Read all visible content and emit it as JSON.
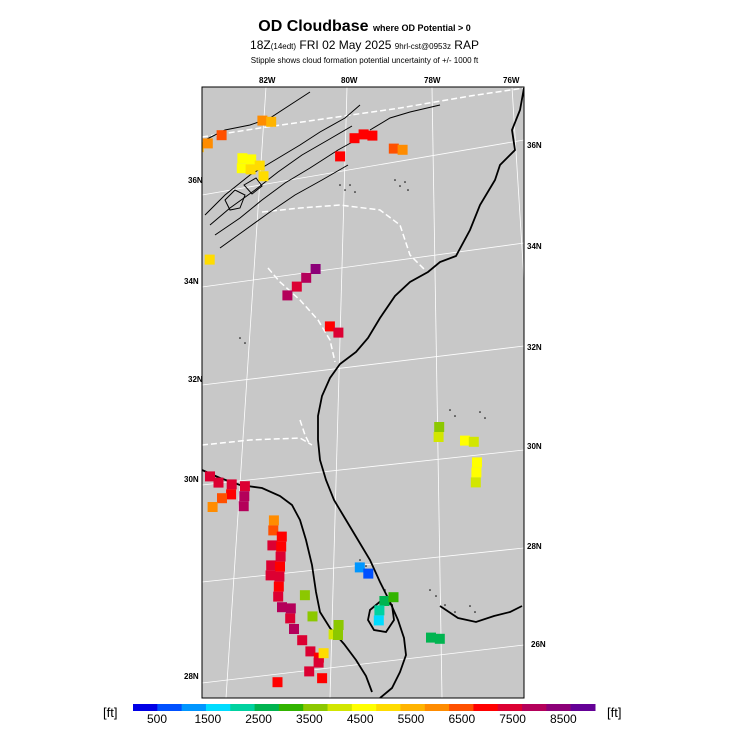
{
  "header": {
    "title_main": "OD Cloudbase",
    "title_sub": "where OD Potential > 0",
    "line2_main": "18Z",
    "line2_edt": "(14edt)",
    "line2_date": "FRI 02 May 2025",
    "line2_fcst": "9hrl-cst@0953z",
    "line2_model": "RAP",
    "line3": "Stipple shows cloud formation potential uncertainty of +/- 1000 ft"
  },
  "axes": {
    "top_lon": [
      "82W",
      "80W",
      "78W",
      "76W"
    ],
    "left_lat": [
      "36N",
      "34N",
      "32N",
      "30N",
      "28N"
    ],
    "right_lat": [
      "36N",
      "34N",
      "32N",
      "30N",
      "28N",
      "26N"
    ]
  },
  "colorbar": {
    "unit_left": "[ft]",
    "unit_right": "[ft]",
    "tick_labels": [
      "500",
      "1500",
      "2500",
      "3500",
      "4500",
      "5500",
      "6500",
      "7500",
      "8500"
    ],
    "colors": [
      "#0000e6",
      "#0050ff",
      "#0096ff",
      "#00dcff",
      "#00d2a0",
      "#00b450",
      "#32b400",
      "#8cc800",
      "#d2e600",
      "#ffff00",
      "#ffdc00",
      "#ffb400",
      "#ff8c00",
      "#ff5000",
      "#ff0000",
      "#dc0032",
      "#b4005a",
      "#8c0078",
      "#640096"
    ]
  },
  "cells": [
    {
      "lon": -82.4,
      "lat": 37.0,
      "c": 12
    },
    {
      "lon": -82.2,
      "lat": 37.0,
      "c": 11
    },
    {
      "lon": -80.3,
      "lat": 36.9,
      "c": 14
    },
    {
      "lon": -80.1,
      "lat": 37.0,
      "c": 14
    },
    {
      "lon": -79.9,
      "lat": 37.0,
      "c": 14
    },
    {
      "lon": -79.4,
      "lat": 36.8,
      "c": 13
    },
    {
      "lon": -79.2,
      "lat": 36.8,
      "c": 12
    },
    {
      "lon": -83.3,
      "lat": 36.6,
      "c": 13
    },
    {
      "lon": -80.6,
      "lat": 36.5,
      "c": 14
    },
    {
      "lon": -84.0,
      "lat": 36.3,
      "c": 11
    },
    {
      "lon": -83.8,
      "lat": 36.3,
      "c": 11
    },
    {
      "lon": -83.6,
      "lat": 36.4,
      "c": 12
    },
    {
      "lon": -82.8,
      "lat": 36.2,
      "c": 9
    },
    {
      "lon": -82.6,
      "lat": 36.2,
      "c": 9
    },
    {
      "lon": -82.4,
      "lat": 36.1,
      "c": 10
    },
    {
      "lon": -82.8,
      "lat": 36.0,
      "c": 9
    },
    {
      "lon": -82.6,
      "lat": 36.0,
      "c": 10
    },
    {
      "lon": -82.3,
      "lat": 35.9,
      "c": 10
    },
    {
      "lon": -84.2,
      "lat": 35.1,
      "c": 10
    },
    {
      "lon": -84.0,
      "lat": 35.0,
      "c": 9
    },
    {
      "lon": -84.2,
      "lat": 34.9,
      "c": 9
    },
    {
      "lon": -84.4,
      "lat": 34.8,
      "c": 9
    },
    {
      "lon": -84.0,
      "lat": 34.8,
      "c": 10
    },
    {
      "lon": -83.8,
      "lat": 34.8,
      "c": 11
    },
    {
      "lon": -83.4,
      "lat": 34.1,
      "c": 10
    },
    {
      "lon": -81.0,
      "lat": 34.2,
      "c": 17
    },
    {
      "lon": -81.2,
      "lat": 34.0,
      "c": 16
    },
    {
      "lon": -81.4,
      "lat": 33.8,
      "c": 15
    },
    {
      "lon": -81.6,
      "lat": 33.6,
      "c": 16
    },
    {
      "lon": -80.6,
      "lat": 33.1,
      "c": 14
    },
    {
      "lon": -80.4,
      "lat": 33.0,
      "c": 15
    },
    {
      "lon": -78.0,
      "lat": 31.4,
      "c": 7
    },
    {
      "lon": -78.0,
      "lat": 31.2,
      "c": 8
    },
    {
      "lon": -77.4,
      "lat": 31.2,
      "c": 9
    },
    {
      "lon": -77.2,
      "lat": 31.2,
      "c": 8
    },
    {
      "lon": -77.1,
      "lat": 30.8,
      "c": 9
    },
    {
      "lon": -77.1,
      "lat": 30.6,
      "c": 9
    },
    {
      "lon": -77.1,
      "lat": 30.4,
      "c": 8
    },
    {
      "lon": -83.1,
      "lat": 29.8,
      "c": 15
    },
    {
      "lon": -82.9,
      "lat": 29.7,
      "c": 15
    },
    {
      "lon": -82.6,
      "lat": 29.7,
      "c": 15
    },
    {
      "lon": -82.3,
      "lat": 29.7,
      "c": 15
    },
    {
      "lon": -82.6,
      "lat": 29.5,
      "c": 14
    },
    {
      "lon": -82.8,
      "lat": 29.4,
      "c": 13
    },
    {
      "lon": -82.3,
      "lat": 29.5,
      "c": 16
    },
    {
      "lon": -82.3,
      "lat": 29.3,
      "c": 16
    },
    {
      "lon": -83.0,
      "lat": 29.2,
      "c": 12
    },
    {
      "lon": -81.6,
      "lat": 29.1,
      "c": 12
    },
    {
      "lon": -81.6,
      "lat": 28.9,
      "c": 13
    },
    {
      "lon": -81.4,
      "lat": 28.8,
      "c": 14
    },
    {
      "lon": -81.6,
      "lat": 28.6,
      "c": 15
    },
    {
      "lon": -81.4,
      "lat": 28.6,
      "c": 14
    },
    {
      "lon": -81.4,
      "lat": 28.4,
      "c": 15
    },
    {
      "lon": -81.6,
      "lat": 28.2,
      "c": 15
    },
    {
      "lon": -81.4,
      "lat": 28.2,
      "c": 14
    },
    {
      "lon": -81.6,
      "lat": 28.0,
      "c": 15
    },
    {
      "lon": -81.4,
      "lat": 28.0,
      "c": 15
    },
    {
      "lon": -81.4,
      "lat": 27.8,
      "c": 14
    },
    {
      "lon": -81.4,
      "lat": 27.6,
      "c": 15
    },
    {
      "lon": -81.3,
      "lat": 27.4,
      "c": 16
    },
    {
      "lon": -81.1,
      "lat": 27.4,
      "c": 16
    },
    {
      "lon": -81.1,
      "lat": 27.2,
      "c": 15
    },
    {
      "lon": -81.0,
      "lat": 27.0,
      "c": 16
    },
    {
      "lon": -80.8,
      "lat": 26.8,
      "c": 15
    },
    {
      "lon": -80.6,
      "lat": 26.6,
      "c": 15
    },
    {
      "lon": -80.4,
      "lat": 26.5,
      "c": 14
    },
    {
      "lon": -80.4,
      "lat": 26.4,
      "c": 15
    },
    {
      "lon": -80.6,
      "lat": 26.2,
      "c": 15
    },
    {
      "lon": -80.3,
      "lat": 26.1,
      "c": 14
    },
    {
      "lon": -81.3,
      "lat": 25.9,
      "c": 14
    },
    {
      "lon": -80.8,
      "lat": 27.7,
      "c": 7
    },
    {
      "lon": -80.6,
      "lat": 27.3,
      "c": 7
    },
    {
      "lon": -80.1,
      "lat": 27.0,
      "c": 8
    },
    {
      "lon": -80.0,
      "lat": 27.2,
      "c": 7
    },
    {
      "lon": -80.0,
      "lat": 27.0,
      "c": 7
    },
    {
      "lon": -80.3,
      "lat": 26.6,
      "c": 10
    },
    {
      "lon": -79.6,
      "lat": 28.4,
      "c": 2
    },
    {
      "lon": -79.4,
      "lat": 28.3,
      "c": 1
    },
    {
      "lon": -79.0,
      "lat": 27.8,
      "c": 5
    },
    {
      "lon": -79.1,
      "lat": 27.6,
      "c": 4
    },
    {
      "lon": -79.1,
      "lat": 27.4,
      "c": 3
    },
    {
      "lon": -78.8,
      "lat": 27.9,
      "c": 6
    },
    {
      "lon": -77.9,
      "lat": 27.2,
      "c": 5
    },
    {
      "lon": -77.7,
      "lat": 27.2,
      "c": 5
    }
  ]
}
